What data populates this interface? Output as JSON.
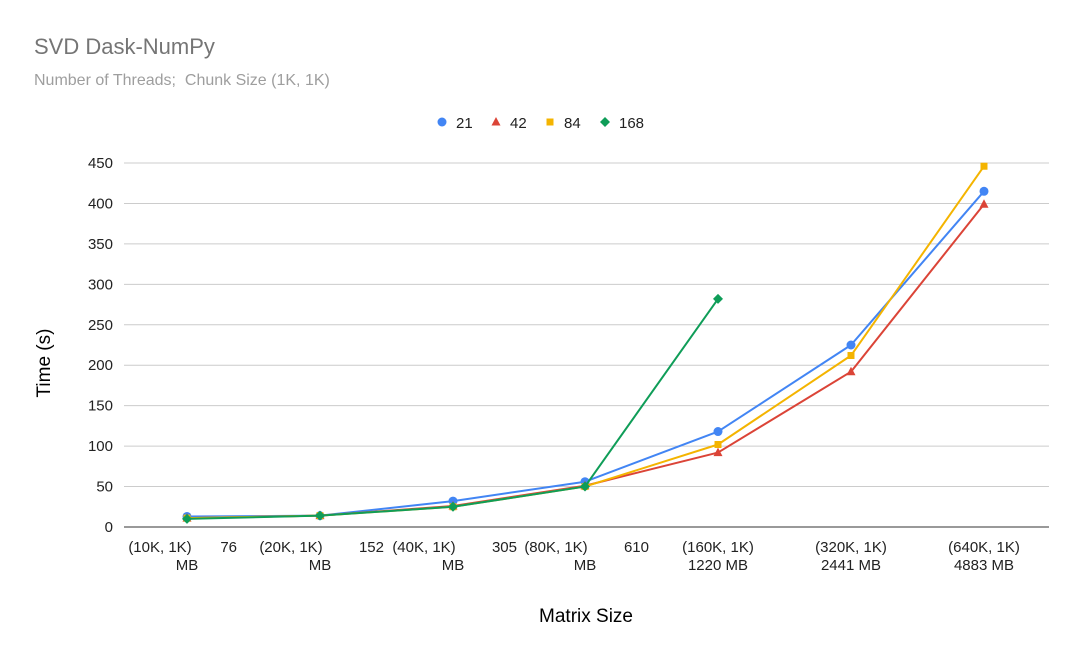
{
  "chart_data": {
    "type": "line",
    "title": "SVD Dask-NumPy",
    "subtitle": "Number of Threads;  Chunk Size (1K, 1K)",
    "xlabel": "Matrix Size",
    "ylabel": "Time (s)",
    "ylim": [
      0,
      450
    ],
    "yticks": [
      "0",
      "50",
      "100",
      "150",
      "200",
      "250",
      "300",
      "350",
      "400",
      "450"
    ],
    "grid": true,
    "legend_position": "top",
    "categories": [
      [
        "(10K, 1K)",
        "76",
        "MB"
      ],
      [
        "(20K, 1K)",
        "152",
        "MB"
      ],
      [
        "(40K, 1K)",
        "305",
        "MB"
      ],
      [
        "(80K, 1K)",
        "610",
        "MB"
      ],
      [
        "(160K, 1K)",
        "1220 MB"
      ],
      [
        "(320K, 1K)",
        "2441 MB"
      ],
      [
        "(640K, 1K)",
        "4883 MB"
      ]
    ],
    "series": [
      {
        "name": "21",
        "color": "#4285f4",
        "marker": "circle",
        "values": [
          13,
          14,
          32,
          56,
          118,
          225,
          415
        ]
      },
      {
        "name": "42",
        "color": "#db4437",
        "marker": "triangle",
        "values": [
          11,
          14,
          26,
          51,
          92,
          192,
          399
        ]
      },
      {
        "name": "84",
        "color": "#f4b400",
        "marker": "square",
        "values": [
          11,
          14,
          25,
          50,
          102,
          212,
          446
        ]
      },
      {
        "name": "168",
        "color": "#0f9d58",
        "marker": "diamond",
        "values": [
          10,
          14,
          25,
          50,
          282,
          null,
          null
        ]
      }
    ]
  }
}
